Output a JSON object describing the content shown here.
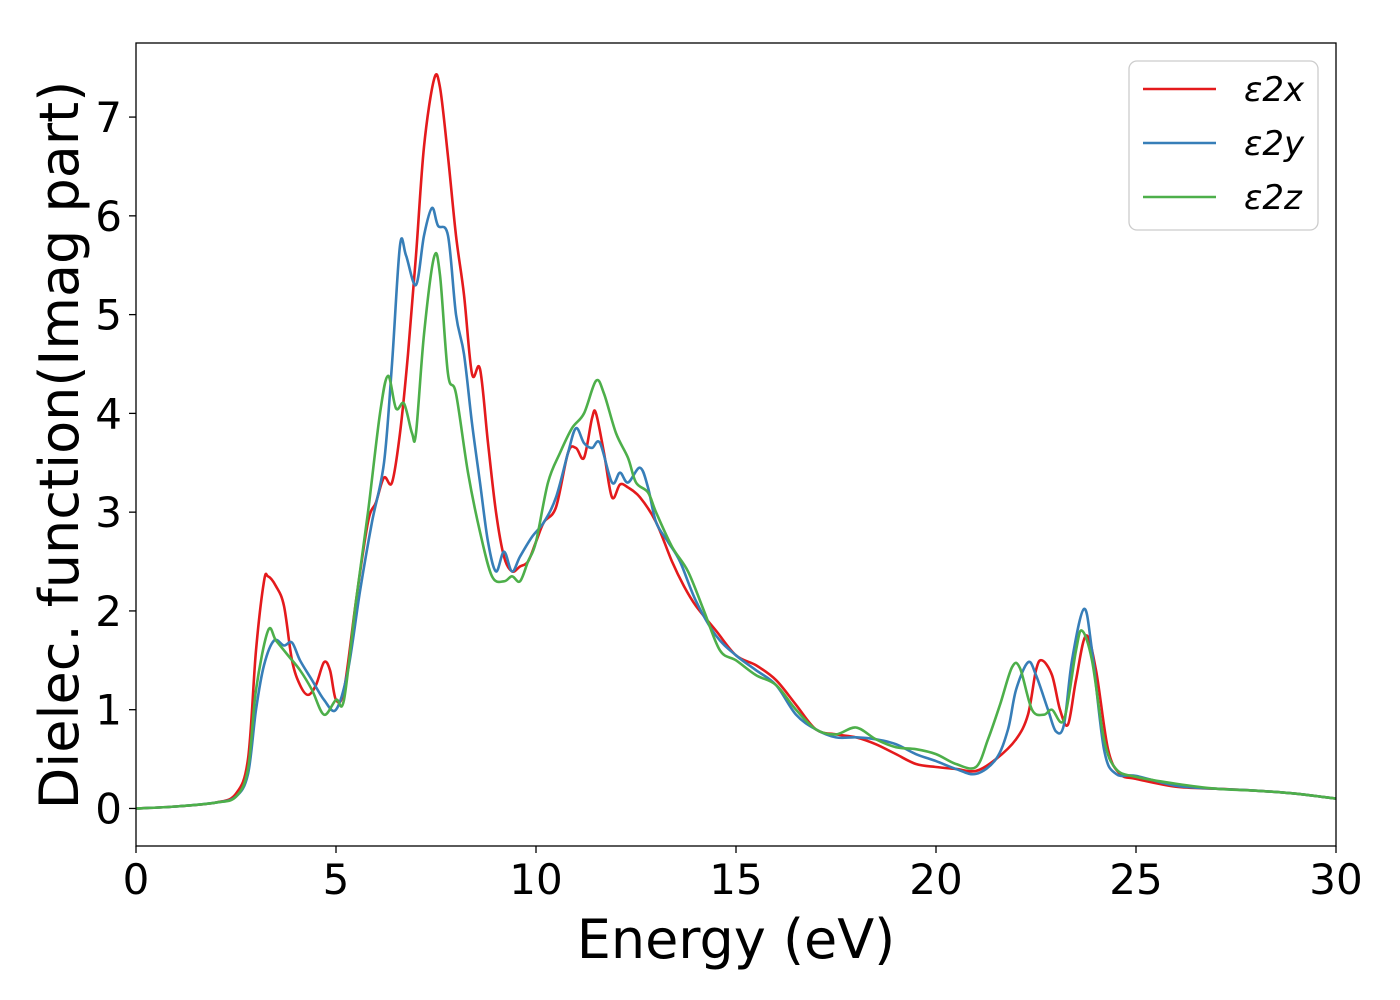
{
  "chart_data": {
    "type": "line",
    "title": "",
    "xlabel": "Energy (eV)",
    "ylabel": "Dielec. function(Imag part)",
    "xlim": [
      0,
      30
    ],
    "ylim": [
      -0.38,
      7.75
    ],
    "xticks": [
      0,
      5,
      10,
      15,
      20,
      25,
      30
    ],
    "yticks": [
      0,
      1,
      2,
      3,
      4,
      5,
      6,
      7
    ],
    "grid": false,
    "legend_position": "top-right",
    "series": [
      {
        "name": "ε2x",
        "color": "#e41a1c",
        "points": [
          [
            0,
            0.0
          ],
          [
            1,
            0.02
          ],
          [
            2,
            0.06
          ],
          [
            2.5,
            0.15
          ],
          [
            2.8,
            0.5
          ],
          [
            3.0,
            1.6
          ],
          [
            3.2,
            2.3
          ],
          [
            3.3,
            2.35
          ],
          [
            3.5,
            2.25
          ],
          [
            3.7,
            2.05
          ],
          [
            3.9,
            1.5
          ],
          [
            4.1,
            1.25
          ],
          [
            4.3,
            1.15
          ],
          [
            4.5,
            1.25
          ],
          [
            4.7,
            1.48
          ],
          [
            4.85,
            1.4
          ],
          [
            5.0,
            1.1
          ],
          [
            5.2,
            1.2
          ],
          [
            5.5,
            2.1
          ],
          [
            5.8,
            2.9
          ],
          [
            6.0,
            3.1
          ],
          [
            6.2,
            3.35
          ],
          [
            6.4,
            3.3
          ],
          [
            6.6,
            3.8
          ],
          [
            6.8,
            4.6
          ],
          [
            7.0,
            5.6
          ],
          [
            7.2,
            6.7
          ],
          [
            7.45,
            7.38
          ],
          [
            7.6,
            7.3
          ],
          [
            7.8,
            6.6
          ],
          [
            8.0,
            5.8
          ],
          [
            8.2,
            5.2
          ],
          [
            8.4,
            4.4
          ],
          [
            8.6,
            4.45
          ],
          [
            8.8,
            3.7
          ],
          [
            9.0,
            3.0
          ],
          [
            9.2,
            2.55
          ],
          [
            9.4,
            2.4
          ],
          [
            9.6,
            2.45
          ],
          [
            9.8,
            2.5
          ],
          [
            10.0,
            2.7
          ],
          [
            10.2,
            2.9
          ],
          [
            10.5,
            3.05
          ],
          [
            10.8,
            3.6
          ],
          [
            11.0,
            3.65
          ],
          [
            11.2,
            3.55
          ],
          [
            11.4,
            3.95
          ],
          [
            11.5,
            4.0
          ],
          [
            11.7,
            3.6
          ],
          [
            11.9,
            3.15
          ],
          [
            12.1,
            3.28
          ],
          [
            12.3,
            3.25
          ],
          [
            12.6,
            3.15
          ],
          [
            13.0,
            2.9
          ],
          [
            13.4,
            2.5
          ],
          [
            13.7,
            2.25
          ],
          [
            14.0,
            2.05
          ],
          [
            14.5,
            1.8
          ],
          [
            15.0,
            1.55
          ],
          [
            15.5,
            1.45
          ],
          [
            16.0,
            1.3
          ],
          [
            16.5,
            1.05
          ],
          [
            17.0,
            0.8
          ],
          [
            17.5,
            0.75
          ],
          [
            18.0,
            0.72
          ],
          [
            18.5,
            0.65
          ],
          [
            19.0,
            0.55
          ],
          [
            19.5,
            0.45
          ],
          [
            20.0,
            0.42
          ],
          [
            20.5,
            0.4
          ],
          [
            21.0,
            0.38
          ],
          [
            21.5,
            0.5
          ],
          [
            22.0,
            0.7
          ],
          [
            22.3,
            0.95
          ],
          [
            22.5,
            1.4
          ],
          [
            22.65,
            1.5
          ],
          [
            22.9,
            1.35
          ],
          [
            23.1,
            1.0
          ],
          [
            23.3,
            0.85
          ],
          [
            23.5,
            1.3
          ],
          [
            23.75,
            1.75
          ],
          [
            24.0,
            1.4
          ],
          [
            24.3,
            0.6
          ],
          [
            24.6,
            0.35
          ],
          [
            25.0,
            0.3
          ],
          [
            26.0,
            0.22
          ],
          [
            27.0,
            0.2
          ],
          [
            28.0,
            0.18
          ],
          [
            29.0,
            0.15
          ],
          [
            30,
            0.1
          ]
        ]
      },
      {
        "name": "ε2y",
        "color": "#377eb8",
        "points": [
          [
            0,
            0.0
          ],
          [
            1,
            0.02
          ],
          [
            2,
            0.06
          ],
          [
            2.5,
            0.12
          ],
          [
            2.8,
            0.35
          ],
          [
            3.0,
            1.0
          ],
          [
            3.2,
            1.45
          ],
          [
            3.45,
            1.7
          ],
          [
            3.7,
            1.65
          ],
          [
            3.9,
            1.68
          ],
          [
            4.1,
            1.5
          ],
          [
            4.4,
            1.3
          ],
          [
            4.7,
            1.1
          ],
          [
            5.0,
            1.0
          ],
          [
            5.3,
            1.4
          ],
          [
            5.6,
            2.2
          ],
          [
            5.9,
            2.9
          ],
          [
            6.2,
            3.5
          ],
          [
            6.4,
            4.5
          ],
          [
            6.6,
            5.7
          ],
          [
            6.75,
            5.6
          ],
          [
            7.0,
            5.3
          ],
          [
            7.2,
            5.8
          ],
          [
            7.4,
            6.08
          ],
          [
            7.55,
            5.9
          ],
          [
            7.8,
            5.8
          ],
          [
            8.0,
            5.0
          ],
          [
            8.2,
            4.6
          ],
          [
            8.4,
            3.9
          ],
          [
            8.6,
            3.3
          ],
          [
            8.8,
            2.7
          ],
          [
            9.0,
            2.4
          ],
          [
            9.2,
            2.6
          ],
          [
            9.4,
            2.4
          ],
          [
            9.6,
            2.55
          ],
          [
            9.9,
            2.75
          ],
          [
            10.2,
            2.9
          ],
          [
            10.5,
            3.15
          ],
          [
            10.8,
            3.6
          ],
          [
            11.0,
            3.85
          ],
          [
            11.2,
            3.7
          ],
          [
            11.4,
            3.65
          ],
          [
            11.6,
            3.7
          ],
          [
            11.9,
            3.3
          ],
          [
            12.1,
            3.4
          ],
          [
            12.3,
            3.3
          ],
          [
            12.6,
            3.45
          ],
          [
            12.8,
            3.25
          ],
          [
            13.0,
            2.9
          ],
          [
            13.3,
            2.7
          ],
          [
            13.6,
            2.5
          ],
          [
            14.0,
            2.1
          ],
          [
            14.5,
            1.75
          ],
          [
            15.0,
            1.55
          ],
          [
            15.5,
            1.4
          ],
          [
            16.0,
            1.25
          ],
          [
            16.5,
            0.95
          ],
          [
            17.0,
            0.8
          ],
          [
            17.5,
            0.72
          ],
          [
            18.0,
            0.72
          ],
          [
            18.5,
            0.7
          ],
          [
            19.0,
            0.65
          ],
          [
            19.5,
            0.55
          ],
          [
            20.0,
            0.48
          ],
          [
            20.5,
            0.4
          ],
          [
            21.0,
            0.35
          ],
          [
            21.5,
            0.5
          ],
          [
            21.8,
            0.8
          ],
          [
            22.0,
            1.2
          ],
          [
            22.3,
            1.48
          ],
          [
            22.5,
            1.35
          ],
          [
            22.8,
            1.0
          ],
          [
            23.0,
            0.78
          ],
          [
            23.2,
            0.85
          ],
          [
            23.4,
            1.5
          ],
          [
            23.7,
            2.02
          ],
          [
            23.9,
            1.6
          ],
          [
            24.2,
            0.6
          ],
          [
            24.5,
            0.35
          ],
          [
            25.0,
            0.33
          ],
          [
            26.0,
            0.23
          ],
          [
            27.0,
            0.2
          ],
          [
            28.0,
            0.18
          ],
          [
            29.0,
            0.15
          ],
          [
            30,
            0.1
          ]
        ]
      },
      {
        "name": "ε2z",
        "color": "#4daf4a",
        "points": [
          [
            0,
            0.0
          ],
          [
            1,
            0.02
          ],
          [
            2,
            0.06
          ],
          [
            2.5,
            0.12
          ],
          [
            2.8,
            0.4
          ],
          [
            3.0,
            1.2
          ],
          [
            3.3,
            1.8
          ],
          [
            3.5,
            1.7
          ],
          [
            3.8,
            1.55
          ],
          [
            4.1,
            1.4
          ],
          [
            4.4,
            1.2
          ],
          [
            4.7,
            0.95
          ],
          [
            5.0,
            1.1
          ],
          [
            5.2,
            1.1
          ],
          [
            5.5,
            2.1
          ],
          [
            5.8,
            3.0
          ],
          [
            6.1,
            4.0
          ],
          [
            6.3,
            4.38
          ],
          [
            6.5,
            4.05
          ],
          [
            6.7,
            4.1
          ],
          [
            6.9,
            3.8
          ],
          [
            7.0,
            3.8
          ],
          [
            7.2,
            4.8
          ],
          [
            7.45,
            5.58
          ],
          [
            7.6,
            5.4
          ],
          [
            7.8,
            4.4
          ],
          [
            8.0,
            4.2
          ],
          [
            8.3,
            3.4
          ],
          [
            8.6,
            2.8
          ],
          [
            8.9,
            2.35
          ],
          [
            9.2,
            2.3
          ],
          [
            9.4,
            2.35
          ],
          [
            9.6,
            2.3
          ],
          [
            9.8,
            2.5
          ],
          [
            10.0,
            2.7
          ],
          [
            10.3,
            3.3
          ],
          [
            10.6,
            3.6
          ],
          [
            10.9,
            3.85
          ],
          [
            11.2,
            4.0
          ],
          [
            11.5,
            4.33
          ],
          [
            11.7,
            4.2
          ],
          [
            12.0,
            3.8
          ],
          [
            12.3,
            3.55
          ],
          [
            12.5,
            3.3
          ],
          [
            12.8,
            3.2
          ],
          [
            13.0,
            3.0
          ],
          [
            13.4,
            2.65
          ],
          [
            13.8,
            2.4
          ],
          [
            14.2,
            2.0
          ],
          [
            14.6,
            1.6
          ],
          [
            15.0,
            1.5
          ],
          [
            15.5,
            1.35
          ],
          [
            16.0,
            1.25
          ],
          [
            16.5,
            1.0
          ],
          [
            17.0,
            0.8
          ],
          [
            17.5,
            0.75
          ],
          [
            18.0,
            0.82
          ],
          [
            18.5,
            0.7
          ],
          [
            19.0,
            0.62
          ],
          [
            19.5,
            0.6
          ],
          [
            20.0,
            0.55
          ],
          [
            20.5,
            0.45
          ],
          [
            21.0,
            0.42
          ],
          [
            21.3,
            0.7
          ],
          [
            21.6,
            1.05
          ],
          [
            21.9,
            1.43
          ],
          [
            22.1,
            1.42
          ],
          [
            22.4,
            1.0
          ],
          [
            22.7,
            0.95
          ],
          [
            22.9,
            1.0
          ],
          [
            23.2,
            0.9
          ],
          [
            23.5,
            1.6
          ],
          [
            23.65,
            1.8
          ],
          [
            23.9,
            1.5
          ],
          [
            24.2,
            0.7
          ],
          [
            24.5,
            0.4
          ],
          [
            25.0,
            0.32
          ],
          [
            26.0,
            0.25
          ],
          [
            27.0,
            0.2
          ],
          [
            28.0,
            0.18
          ],
          [
            29.0,
            0.15
          ],
          [
            30,
            0.1
          ]
        ]
      }
    ]
  }
}
